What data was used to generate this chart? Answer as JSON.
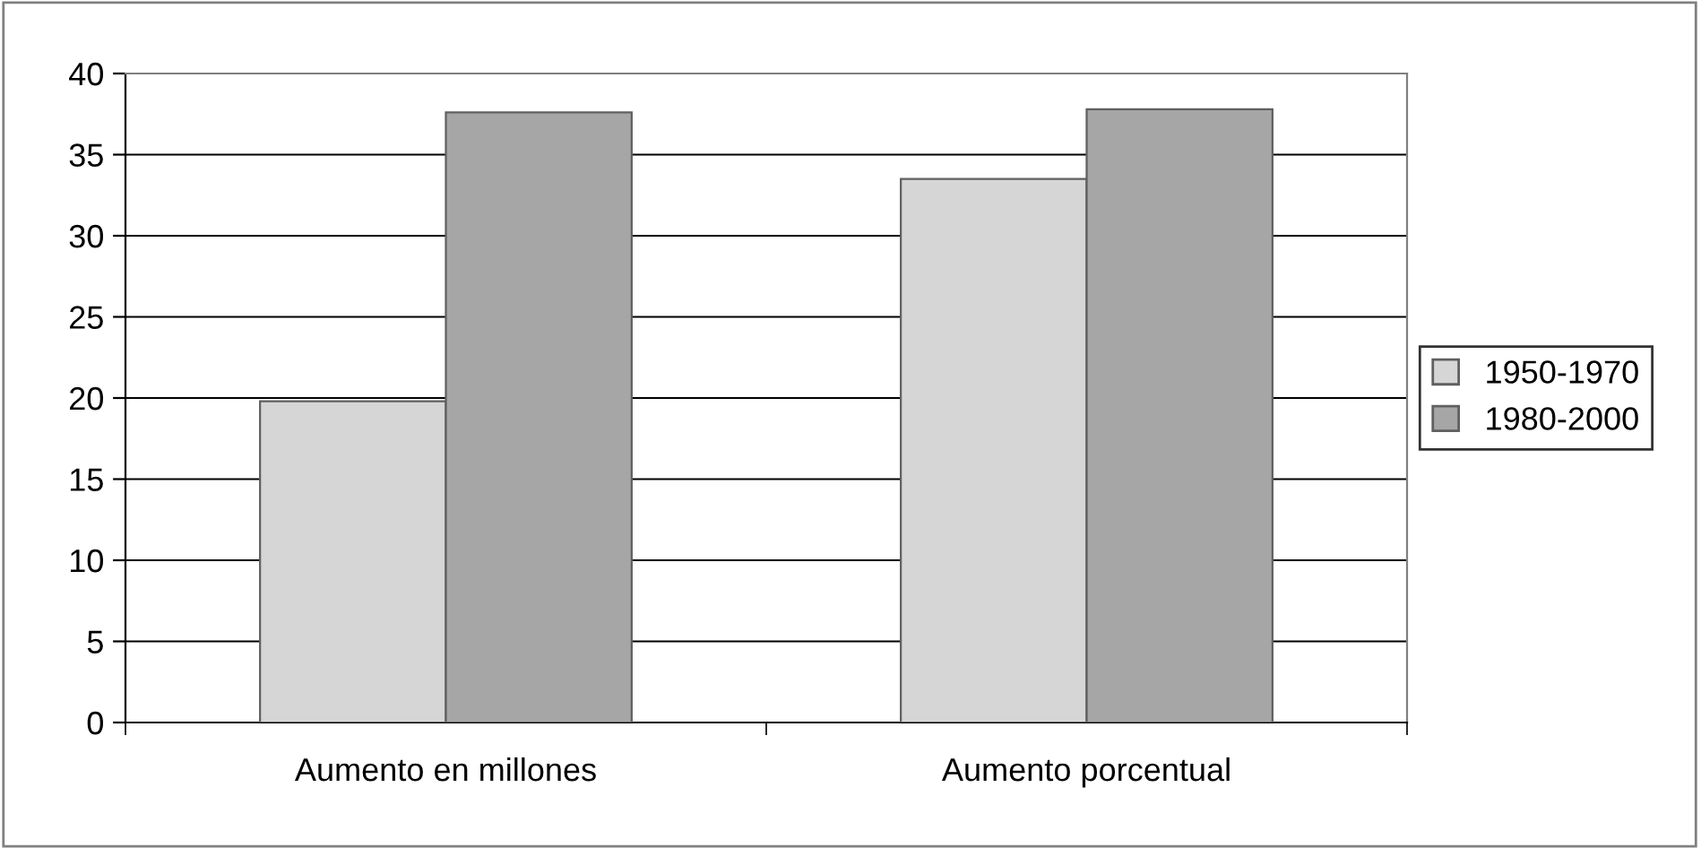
{
  "chart_data": {
    "type": "bar",
    "categories": [
      "Aumento en millones",
      "Aumento porcentual"
    ],
    "series": [
      {
        "name": "1950-1970",
        "color": "#d6d6d6",
        "values": [
          19.8,
          33.5
        ]
      },
      {
        "name": "1980-2000",
        "color": "#a6a6a6",
        "values": [
          37.6,
          37.8
        ]
      }
    ],
    "ylim": [
      0,
      40
    ],
    "yticks": [
      0,
      5,
      10,
      15,
      20,
      25,
      30,
      35,
      40
    ],
    "grid": "y",
    "legend": "right"
  }
}
